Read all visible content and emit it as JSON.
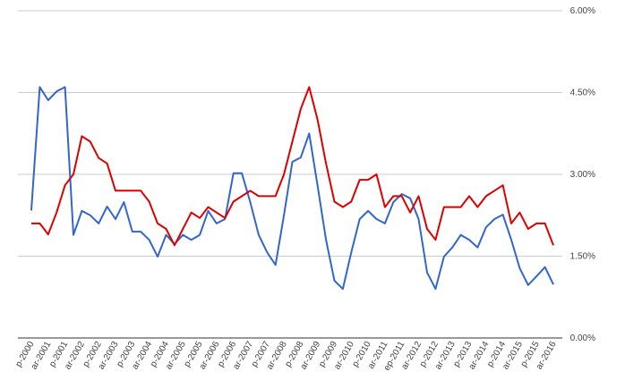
{
  "chart_data": {
    "type": "line",
    "categories": [
      "p-2000",
      null,
      "ar-2001",
      null,
      "p-2001",
      null,
      "ar-2002",
      null,
      "p-2002",
      null,
      "ar-2003",
      null,
      "p-2003",
      null,
      "ar-2004",
      null,
      "p-2004",
      null,
      "ar-2005",
      null,
      "p-2005",
      null,
      "ar-2006",
      null,
      "p-2006",
      null,
      "ar-2007",
      null,
      "p-2007",
      null,
      "ar-2008",
      null,
      "p-2008",
      null,
      "ar-2009",
      null,
      "p-2009",
      null,
      "ar-2010",
      null,
      "p-2010",
      null,
      "ar-2011",
      null,
      "ep-2011",
      null,
      "ar-2012",
      null,
      "p-2012",
      null,
      "ar-2013",
      null,
      "p-2013",
      null,
      "ar-2014",
      null,
      "p-2014",
      null,
      "ar-2015",
      null,
      "p-2015",
      null,
      "ar-2016"
    ],
    "series": [
      {
        "color": "#3366cc",
        "values": [
          2.34,
          4.6,
          4.36,
          4.52,
          4.6,
          1.89,
          2.33,
          2.25,
          2.1,
          2.41,
          2.18,
          2.49,
          1.95,
          1.95,
          1.8,
          1.49,
          1.89,
          1.72,
          1.89,
          1.8,
          1.89,
          2.33,
          2.1,
          2.18,
          3.02,
          3.02,
          2.49,
          1.89,
          1.57,
          1.34,
          2.25,
          3.23,
          3.31,
          3.75,
          2.79,
          1.8,
          1.05,
          0.9,
          1.57,
          2.18,
          2.33,
          2.18,
          2.1,
          2.49,
          2.64,
          2.56,
          2.18,
          1.2,
          0.9,
          1.49,
          1.66,
          1.89,
          1.8,
          1.66,
          2.03,
          2.18,
          2.26,
          1.8,
          1.28,
          0.97,
          1.13,
          1.3,
          0.98
        ]
      },
      {
        "color": "#dd0000",
        "values": [
          2.1,
          2.1,
          1.9,
          2.3,
          2.8,
          3.0,
          3.7,
          3.6,
          3.3,
          3.2,
          2.7,
          2.7,
          2.7,
          2.7,
          2.5,
          2.1,
          2.0,
          1.7,
          2.0,
          2.3,
          2.2,
          2.4,
          2.3,
          2.2,
          2.5,
          2.6,
          2.7,
          2.6,
          2.6,
          2.6,
          3.0,
          3.6,
          4.2,
          4.6,
          4.0,
          3.2,
          2.5,
          2.4,
          2.5,
          2.9,
          2.9,
          3.0,
          2.4,
          2.6,
          2.6,
          2.3,
          2.6,
          2.0,
          1.8,
          2.4,
          2.4,
          2.4,
          2.6,
          2.4,
          2.6,
          2.7,
          2.8,
          2.1,
          2.3,
          2.0,
          2.1,
          2.1,
          1.7
        ]
      }
    ],
    "ylim": [
      0,
      6
    ],
    "yticks": [
      {
        "value": 0,
        "label": "0.00%"
      },
      {
        "value": 1.5,
        "label": "1.50%"
      },
      {
        "value": 3,
        "label": "3.00%"
      },
      {
        "value": 4.5,
        "label": "4.50%"
      },
      {
        "value": 6,
        "label": "6.00%"
      }
    ],
    "grid": true
  }
}
